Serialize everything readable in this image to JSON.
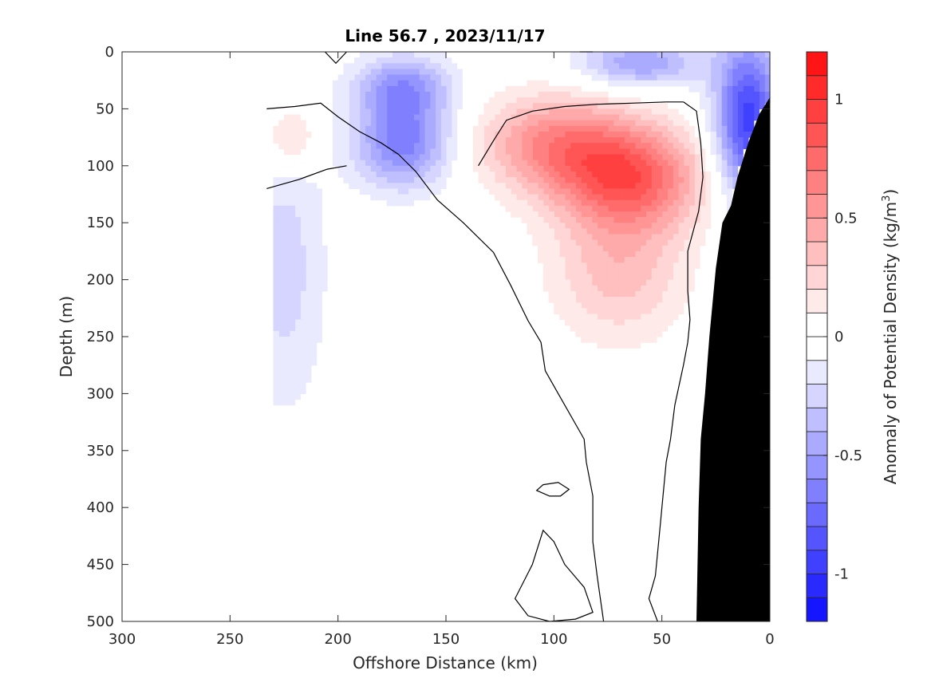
{
  "chart_data": {
    "type": "heatmap",
    "subtype": "filled-contour-section",
    "title": "Line 56.7 , 2023/11/17",
    "xlabel": "Offshore Distance (km)",
    "ylabel": "Depth (m)",
    "colorbar_label": "Anomaly of Potential Density (kg/m",
    "colorbar_label_sup": "3",
    "colorbar_label_end": ")",
    "xlim": [
      300,
      0
    ],
    "x_reversed": true,
    "ylim": [
      0,
      500
    ],
    "y_reversed": true,
    "xticks": [
      300,
      250,
      200,
      150,
      100,
      50,
      0
    ],
    "yticks": [
      0,
      50,
      100,
      150,
      200,
      250,
      300,
      350,
      400,
      450,
      500
    ],
    "colorbar_range": [
      -1.2,
      1.2
    ],
    "colorbar_step": 0.1,
    "colorbar_ticks": [
      -1,
      -0.5,
      0,
      0.5,
      1
    ],
    "colorbar_tick_labels": [
      "-1",
      "-0.5",
      "0",
      "0.5",
      "1"
    ],
    "colors": {
      "positive_max": "#ff0000",
      "negative_max": "#0000ff",
      "zero": "#ffffff",
      "bathymetry": "#000000",
      "contour_zero": "#000000"
    },
    "data_extent_x_km": [
      0,
      230
    ],
    "anomaly_fields": [
      {
        "name": "positive core",
        "sign": "positive",
        "peak": 0.75,
        "center": [
          65,
          110
        ],
        "spread": [
          24,
          32
        ]
      },
      {
        "name": "positive shelf",
        "sign": "positive",
        "peak": 0.55,
        "center": [
          100,
          80
        ],
        "spread": [
          25,
          30
        ]
      },
      {
        "name": "positive lower lobe",
        "sign": "positive",
        "peak": 0.35,
        "center": [
          70,
          190
        ],
        "spread": [
          22,
          45
        ]
      },
      {
        "name": "positive offshore",
        "sign": "positive",
        "peak": 0.3,
        "center": [
          222,
          75
        ],
        "spread": [
          9,
          20
        ]
      },
      {
        "name": "nearshore negative",
        "sign": "negative",
        "peak": -0.95,
        "center": [
          10,
          60
        ],
        "spread": [
          11,
          50
        ]
      },
      {
        "name": "offshore negative core",
        "sign": "negative",
        "peak": -0.65,
        "center": [
          170,
          80
        ],
        "spread": [
          16,
          28
        ]
      },
      {
        "name": "offshore negative surface",
        "sign": "negative",
        "peak": -0.5,
        "center": [
          170,
          30
        ],
        "spread": [
          16,
          20
        ]
      },
      {
        "name": "surface negative",
        "sign": "negative",
        "peak": -0.5,
        "center": [
          60,
          10
        ],
        "spread": [
          20,
          15
        ]
      },
      {
        "name": "deep offshore negative",
        "sign": "negative",
        "peak": -0.25,
        "center": [
          225,
          190
        ],
        "spread": [
          14,
          90
        ]
      }
    ],
    "zero_contour_curves": [
      [
        [
          233,
          50
        ],
        [
          220,
          48
        ],
        [
          208,
          45
        ],
        [
          200,
          57
        ],
        [
          190,
          70
        ],
        [
          180,
          80
        ],
        [
          172,
          90
        ],
        [
          164,
          105
        ],
        [
          154,
          130
        ],
        [
          142,
          150
        ],
        [
          128,
          176
        ],
        [
          120,
          205
        ],
        [
          112,
          236
        ],
        [
          106,
          255
        ],
        [
          104,
          280
        ],
        [
          98,
          300
        ],
        [
          86,
          340
        ],
        [
          85,
          360
        ],
        [
          82,
          390
        ],
        [
          82,
          430
        ],
        [
          80,
          460
        ],
        [
          77,
          500
        ]
      ],
      [
        [
          233,
          120
        ],
        [
          218,
          112
        ],
        [
          205,
          103
        ],
        [
          196,
          100
        ]
      ],
      [
        [
          135,
          100
        ],
        [
          128,
          78
        ],
        [
          122,
          60
        ],
        [
          110,
          52
        ],
        [
          95,
          48
        ],
        [
          80,
          46
        ],
        [
          64,
          45
        ],
        [
          48,
          44
        ],
        [
          40,
          44
        ]
      ],
      [
        [
          40,
          44
        ],
        [
          34,
          52
        ],
        [
          32,
          80
        ],
        [
          31,
          110
        ],
        [
          33,
          140
        ],
        [
          38,
          175
        ],
        [
          38,
          210
        ],
        [
          37,
          235
        ],
        [
          38,
          255
        ],
        [
          40,
          275
        ],
        [
          44,
          310
        ],
        [
          46,
          340
        ],
        [
          48,
          360
        ],
        [
          49,
          380
        ],
        [
          51,
          420
        ],
        [
          53,
          460
        ],
        [
          56,
          480
        ],
        [
          52,
          500
        ]
      ],
      [
        [
          196,
          0
        ],
        [
          201,
          10
        ],
        [
          206,
          0
        ]
      ],
      [
        [
          88,
          -5
        ],
        [
          82,
          0
        ]
      ]
    ],
    "closed_contours": [
      [
        [
          105,
          380
        ],
        [
          98,
          378
        ],
        [
          93,
          384
        ],
        [
          97,
          390
        ],
        [
          102,
          390
        ],
        [
          108,
          385
        ],
        [
          105,
          380
        ]
      ],
      [
        [
          105,
          420
        ],
        [
          110,
          450
        ],
        [
          118,
          480
        ],
        [
          112,
          495
        ],
        [
          102,
          500
        ],
        [
          90,
          498
        ],
        [
          82,
          492
        ],
        [
          86,
          470
        ],
        [
          95,
          450
        ],
        [
          100,
          430
        ],
        [
          105,
          420
        ]
      ]
    ],
    "bathymetry_profile": [
      [
        0,
        40
      ],
      [
        5,
        55
      ],
      [
        10,
        80
      ],
      [
        15,
        110
      ],
      [
        18,
        135
      ],
      [
        22,
        150
      ],
      [
        25,
        190
      ],
      [
        28,
        250
      ],
      [
        30,
        300
      ],
      [
        32,
        340
      ],
      [
        33,
        400
      ],
      [
        34,
        500
      ]
    ]
  }
}
